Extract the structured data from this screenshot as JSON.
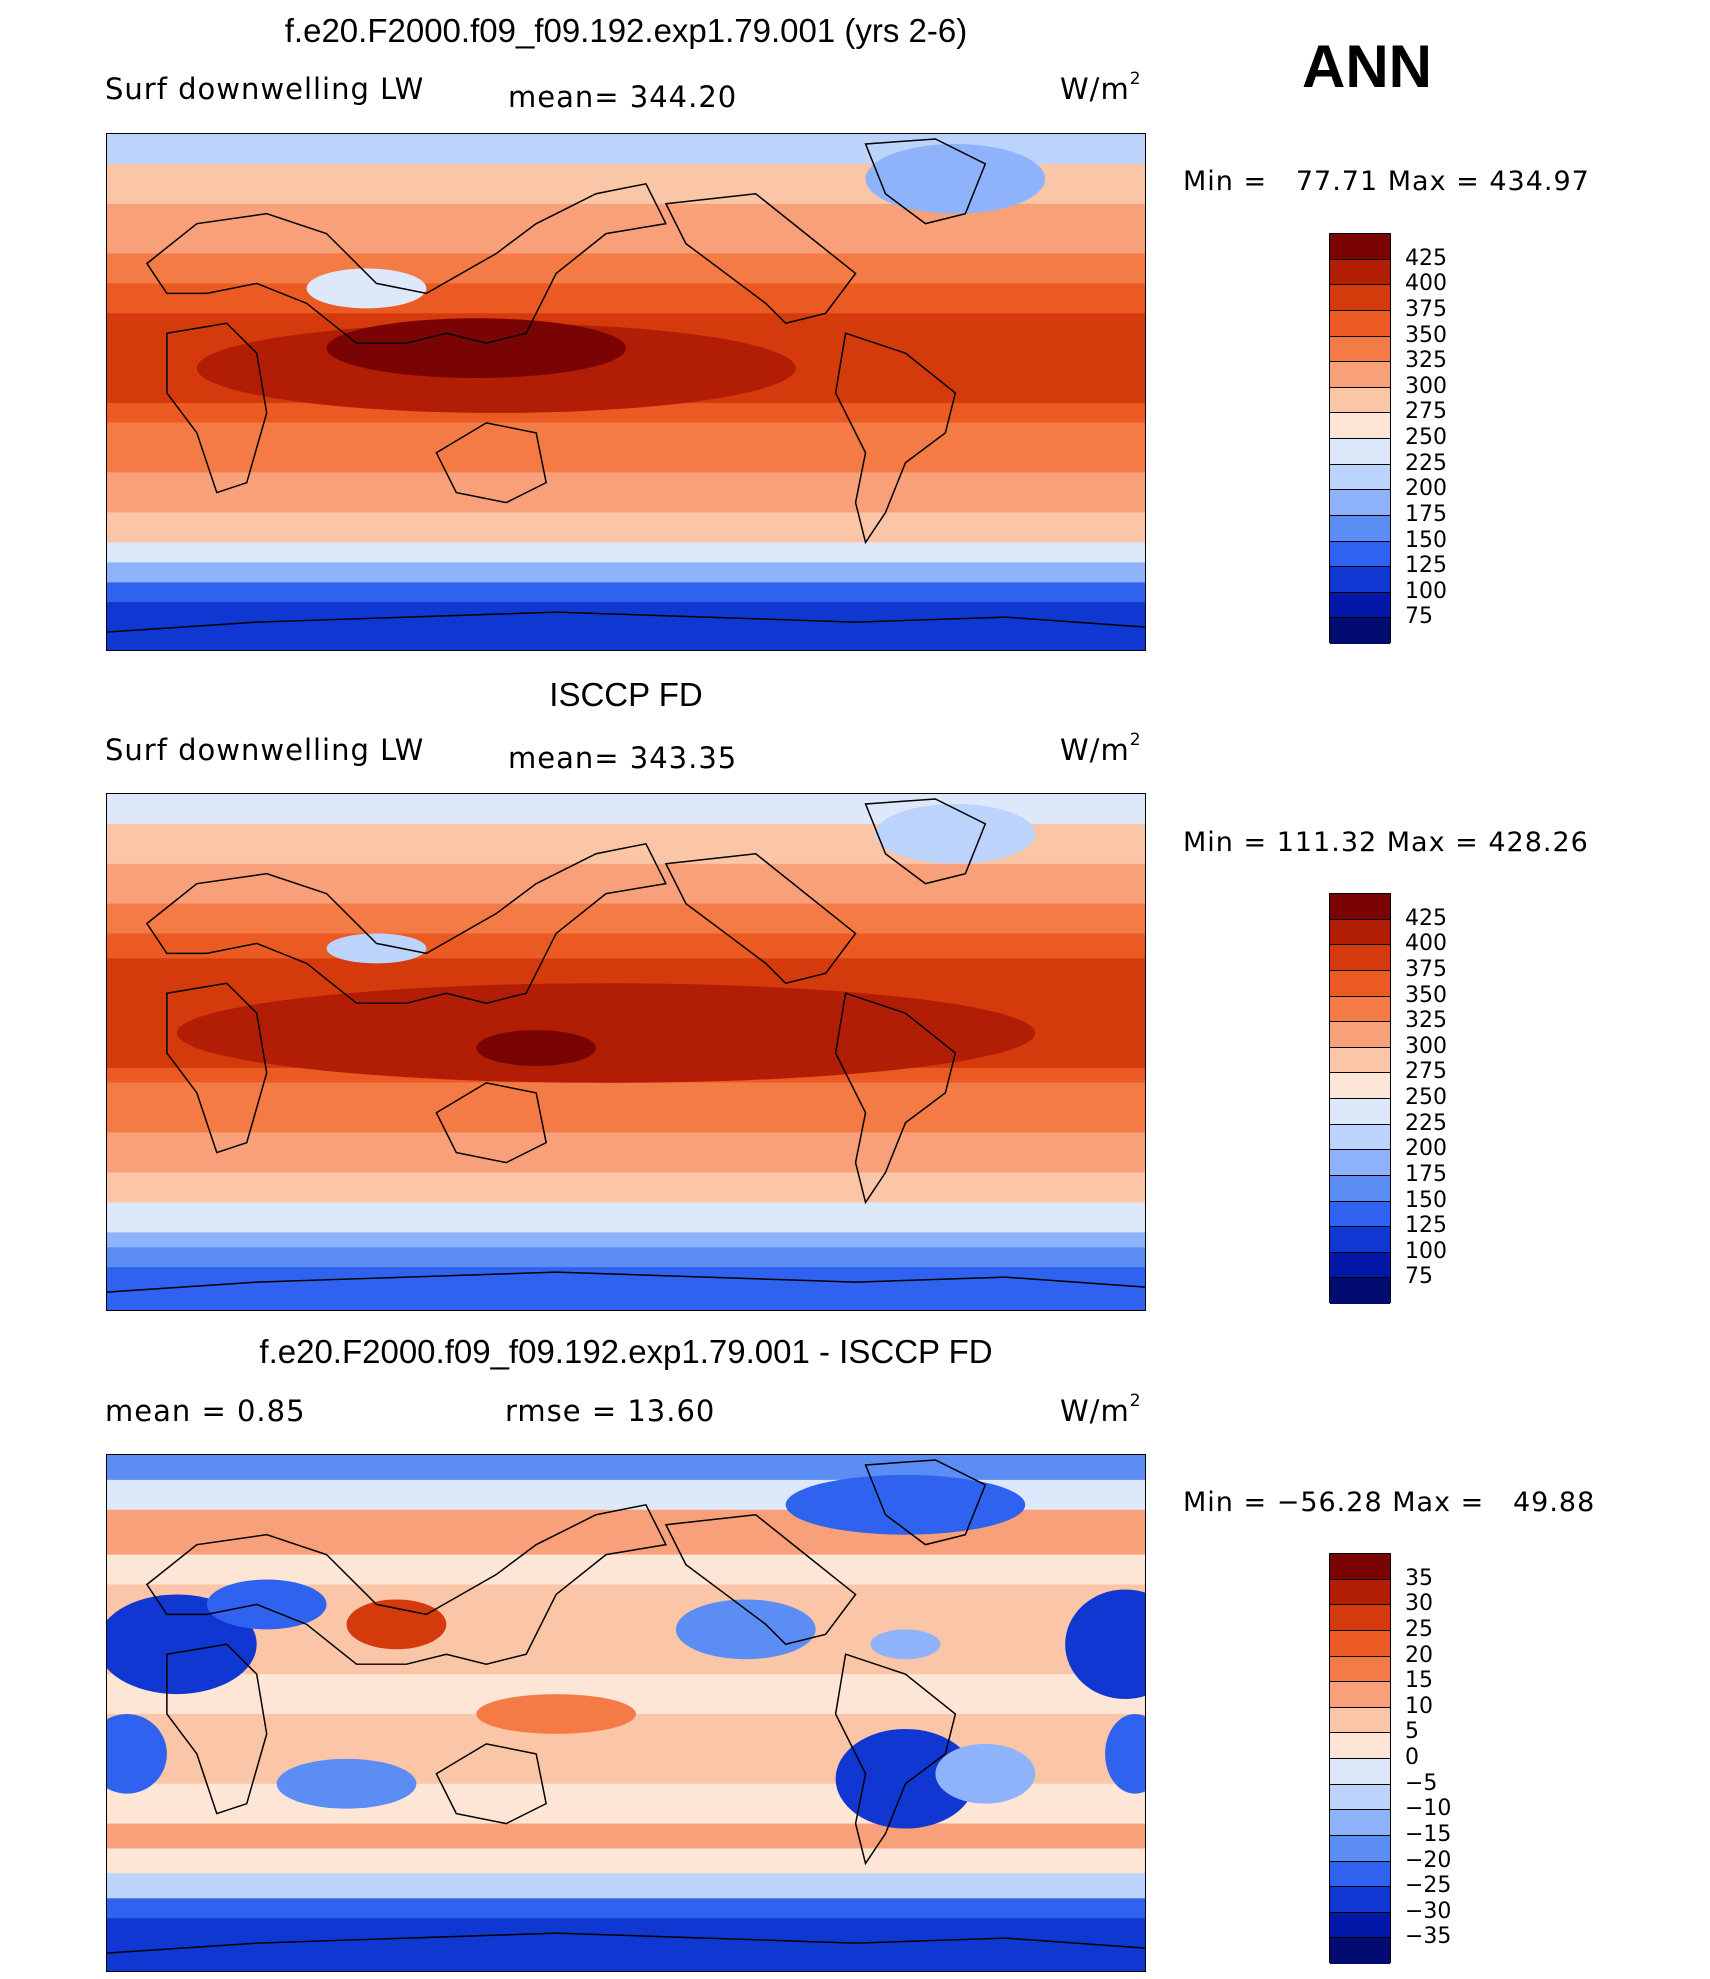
{
  "season": "ANN",
  "panels": [
    {
      "title": "f.e20.F2000.f09_f09.192.exp1.79.001 (yrs 2-6)",
      "left_label": "Surf downwelling LW",
      "center_label": "mean= 344.20",
      "units_base": "W/m",
      "units_exp": "2",
      "minmax": "Min =   77.71 Max = 434.97",
      "colorbar_labels": [
        "425",
        "400",
        "375",
        "350",
        "325",
        "300",
        "275",
        "250",
        "225",
        "200",
        "175",
        "150",
        "125",
        "100",
        "75"
      ]
    },
    {
      "title": "ISCCP FD",
      "left_label": "Surf downwelling LW",
      "center_label": "mean= 343.35",
      "units_base": "W/m",
      "units_exp": "2",
      "minmax": "Min = 111.32 Max = 428.26",
      "colorbar_labels": [
        "425",
        "400",
        "375",
        "350",
        "325",
        "300",
        "275",
        "250",
        "225",
        "200",
        "175",
        "150",
        "125",
        "100",
        "75"
      ]
    },
    {
      "title": "f.e20.F2000.f09_f09.192.exp1.79.001 - ISCCP FD",
      "left_label": "mean =    0.85",
      "center_label": "rmse =   13.60",
      "units_base": "W/m",
      "units_exp": "2",
      "minmax": "Min = −56.28 Max =   49.88",
      "colorbar_labels": [
        "35",
        "30",
        "25",
        "20",
        "15",
        "10",
        "5",
        "0",
        "−5",
        "−10",
        "−15",
        "−20",
        "−25",
        "−30",
        "−35"
      ]
    }
  ],
  "colors": {
    "abs_scale": [
      "#7a0403",
      "#b21e05",
      "#d43a0c",
      "#ec5a23",
      "#f57b46",
      "#f8a07a",
      "#fbc6a8",
      "#fde6d6",
      "#dde9fb",
      "#bcd3fb",
      "#8fb3fa",
      "#5b8df5",
      "#2f62ee",
      "#1137d2",
      "#0318a8",
      "#020c70"
    ],
    "diff_scale": [
      "#7a0403",
      "#b21e05",
      "#d43a0c",
      "#ec5a23",
      "#f57b46",
      "#f8a07a",
      "#fbc6a8",
      "#fde6d6",
      "#dde9fb",
      "#bcd3fb",
      "#8fb3fa",
      "#5b8df5",
      "#2f62ee",
      "#1137d2",
      "#0318a8",
      "#020c70"
    ]
  }
}
